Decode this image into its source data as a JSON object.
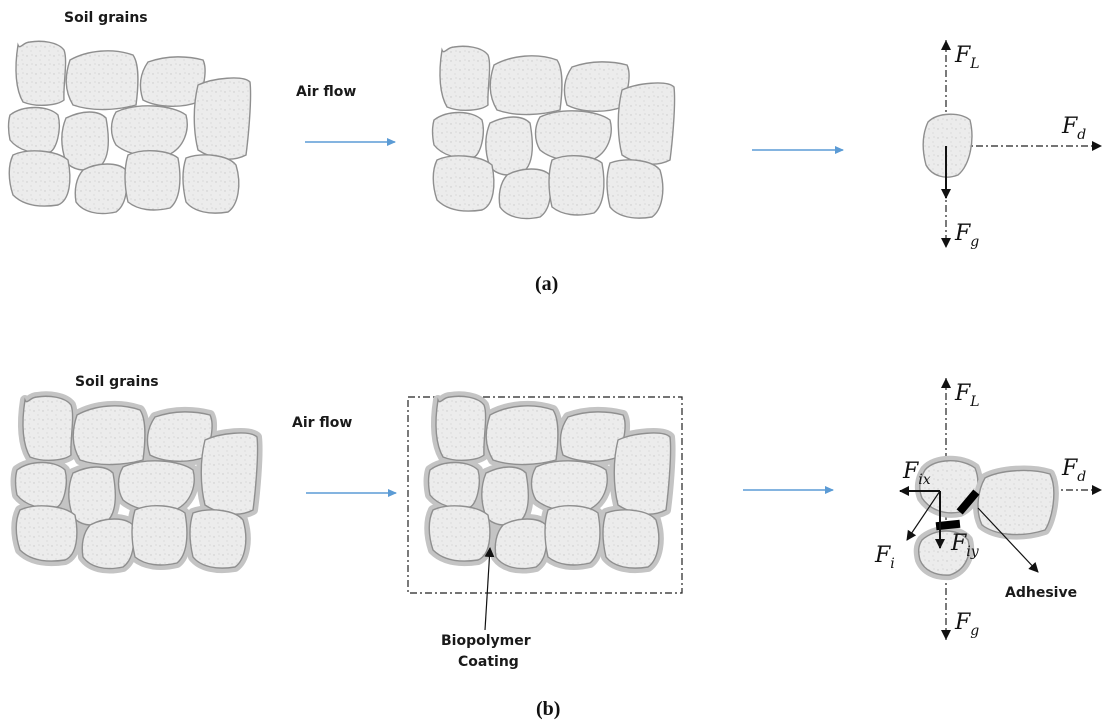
{
  "panel_a": {
    "soil_label": "Soil grains",
    "air_label": "Air flow",
    "caption": "(a)",
    "force_lift": "F",
    "force_lift_sub": "L",
    "force_drag": "F",
    "force_drag_sub": "d",
    "force_gravity": "F",
    "force_gravity_sub": "g"
  },
  "panel_b": {
    "soil_label": "Soil grains",
    "air_label": "Air flow",
    "caption": "(b)",
    "coating_label_1": "Biopolymer",
    "coating_label_2": "Coating",
    "adhesive_label": "Adhesive",
    "force_lift": "F",
    "force_lift_sub": "L",
    "force_drag": "F",
    "force_drag_sub": "d",
    "force_gravity": "F",
    "force_gravity_sub": "g",
    "force_ix": "F",
    "force_ix_sub": "ix",
    "force_iy": "F",
    "force_iy_sub": "iy",
    "force_i": "F",
    "force_i_sub": "i"
  },
  "colors": {
    "arrow": "#5b9bd5",
    "grain_fill": "#e9e9e9",
    "grain_stroke": "#8f8f8f",
    "coating": "#cfcfcf"
  }
}
